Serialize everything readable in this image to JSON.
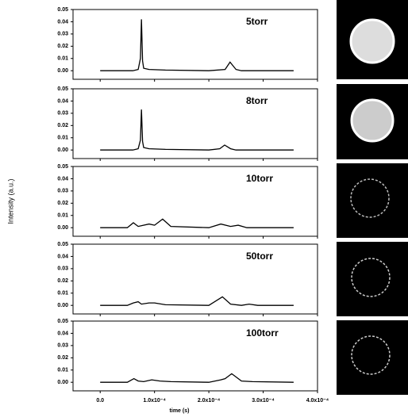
{
  "chart_data": [
    {
      "type": "line",
      "annotation": "5torr",
      "color": "#000",
      "x": [
        0,
        6e-05,
        7e-05,
        7.4e-05,
        7.6e-05,
        7.8e-05,
        8e-05,
        9e-05,
        0.00012,
        0.0002,
        0.00023,
        0.000239,
        0.00025,
        0.00026,
        0.000356
      ],
      "values": [
        0,
        0,
        0.001,
        0.01,
        0.042,
        0.008,
        0.002,
        0.001,
        0.0005,
        0,
        0.001,
        0.007,
        0.001,
        0,
        0
      ],
      "xlim": [
        -5e-05,
        0.0004
      ],
      "ylim": [
        -0.007,
        0.05
      ],
      "yticks": [
        {
          "value": 0,
          "label": "0.00"
        },
        0.01,
        0.02,
        0.03,
        0.04,
        0.05
      ]
    },
    {
      "type": "line",
      "annotation": "8torr",
      "color": "#000",
      "x": [
        0,
        6e-05,
        7e-05,
        7.4e-05,
        7.6e-05,
        7.8e-05,
        8e-05,
        9e-05,
        0.00012,
        0.0002,
        0.00022,
        0.000229,
        0.00024,
        0.00025,
        0.000356
      ],
      "values": [
        0,
        0,
        0.001,
        0.008,
        0.033,
        0.007,
        0.002,
        0.001,
        0.0005,
        0,
        0.001,
        0.004,
        0.001,
        0,
        0
      ],
      "xlim": [
        -5e-05,
        0.0004
      ],
      "ylim": [
        -0.007,
        0.05
      ],
      "yticks": [
        {
          "value": 0,
          "label": "0.00"
        },
        0.01,
        0.02,
        0.03,
        0.04,
        0.05
      ]
    },
    {
      "type": "line",
      "annotation": "10torr",
      "color": "#000",
      "ylabel": "Intensity (a.u.)",
      "x": [
        0,
        5e-05,
        6.1e-05,
        7e-05,
        9e-05,
        0.0001,
        0.000115,
        0.00013,
        0.0002,
        0.000222,
        0.00024,
        0.000254,
        0.00027,
        0.000356
      ],
      "values": [
        0,
        0,
        0.004,
        0.001,
        0.003,
        0.002,
        0.007,
        0.001,
        0,
        0.003,
        0.001,
        0.002,
        0,
        0
      ],
      "xlim": [
        -5e-05,
        0.0004
      ],
      "ylim": [
        -0.007,
        0.05
      ],
      "yticks": [
        {
          "value": 0,
          "label": "0.00"
        },
        0.01,
        0.02,
        0.03,
        0.04,
        0.05
      ]
    },
    {
      "type": "line",
      "annotation": "50torr",
      "color": "#000",
      "x": [
        0,
        5e-05,
        6.1e-05,
        7e-05,
        7.6e-05,
        9e-05,
        0.0001,
        0.00012,
        0.0002,
        0.000225,
        0.00024,
        0.00026,
        0.000274,
        0.00029,
        0.000356
      ],
      "values": [
        0,
        0,
        0.002,
        0.003,
        0.001,
        0.002,
        0.002,
        0.0005,
        0,
        0.007,
        0.001,
        0,
        0.001,
        0,
        0
      ],
      "xlim": [
        -5e-05,
        0.0004
      ],
      "ylim": [
        -0.007,
        0.05
      ],
      "yticks": [
        {
          "value": 0,
          "label": "0.00"
        },
        0.01,
        0.02,
        0.03,
        0.04,
        0.05
      ]
    },
    {
      "type": "line",
      "annotation": "100torr",
      "color": "#000",
      "xlabel": "time (s)",
      "x": [
        0,
        5e-05,
        6.2e-05,
        7e-05,
        8e-05,
        9.5e-05,
        0.00011,
        0.00013,
        0.0002,
        0.000222,
        0.00023,
        0.000242,
        0.00026,
        0.00028,
        0.000356
      ],
      "values": [
        0,
        0,
        0.003,
        0.001,
        0.0005,
        0.002,
        0.001,
        0.0005,
        0,
        0.002,
        0.003,
        0.007,
        0.001,
        0.0005,
        0
      ],
      "xlim": [
        -5e-05,
        0.0004
      ],
      "ylim": [
        -0.007,
        0.05
      ],
      "yticks": [
        {
          "value": 0,
          "label": "0.00"
        },
        0.01,
        0.02,
        0.03,
        0.04,
        0.05
      ],
      "xticks": [
        {
          "value": 0,
          "label": "0.0"
        },
        {
          "value": 0.0001,
          "label": "1.0x10⁻⁴"
        },
        {
          "value": 0.0002,
          "label": "2.0x10⁻⁴"
        },
        {
          "value": 0.0003,
          "label": "3.0x10⁻⁴"
        },
        {
          "value": 0.0004,
          "label": "4.0x10⁻⁴"
        }
      ]
    }
  ]
}
